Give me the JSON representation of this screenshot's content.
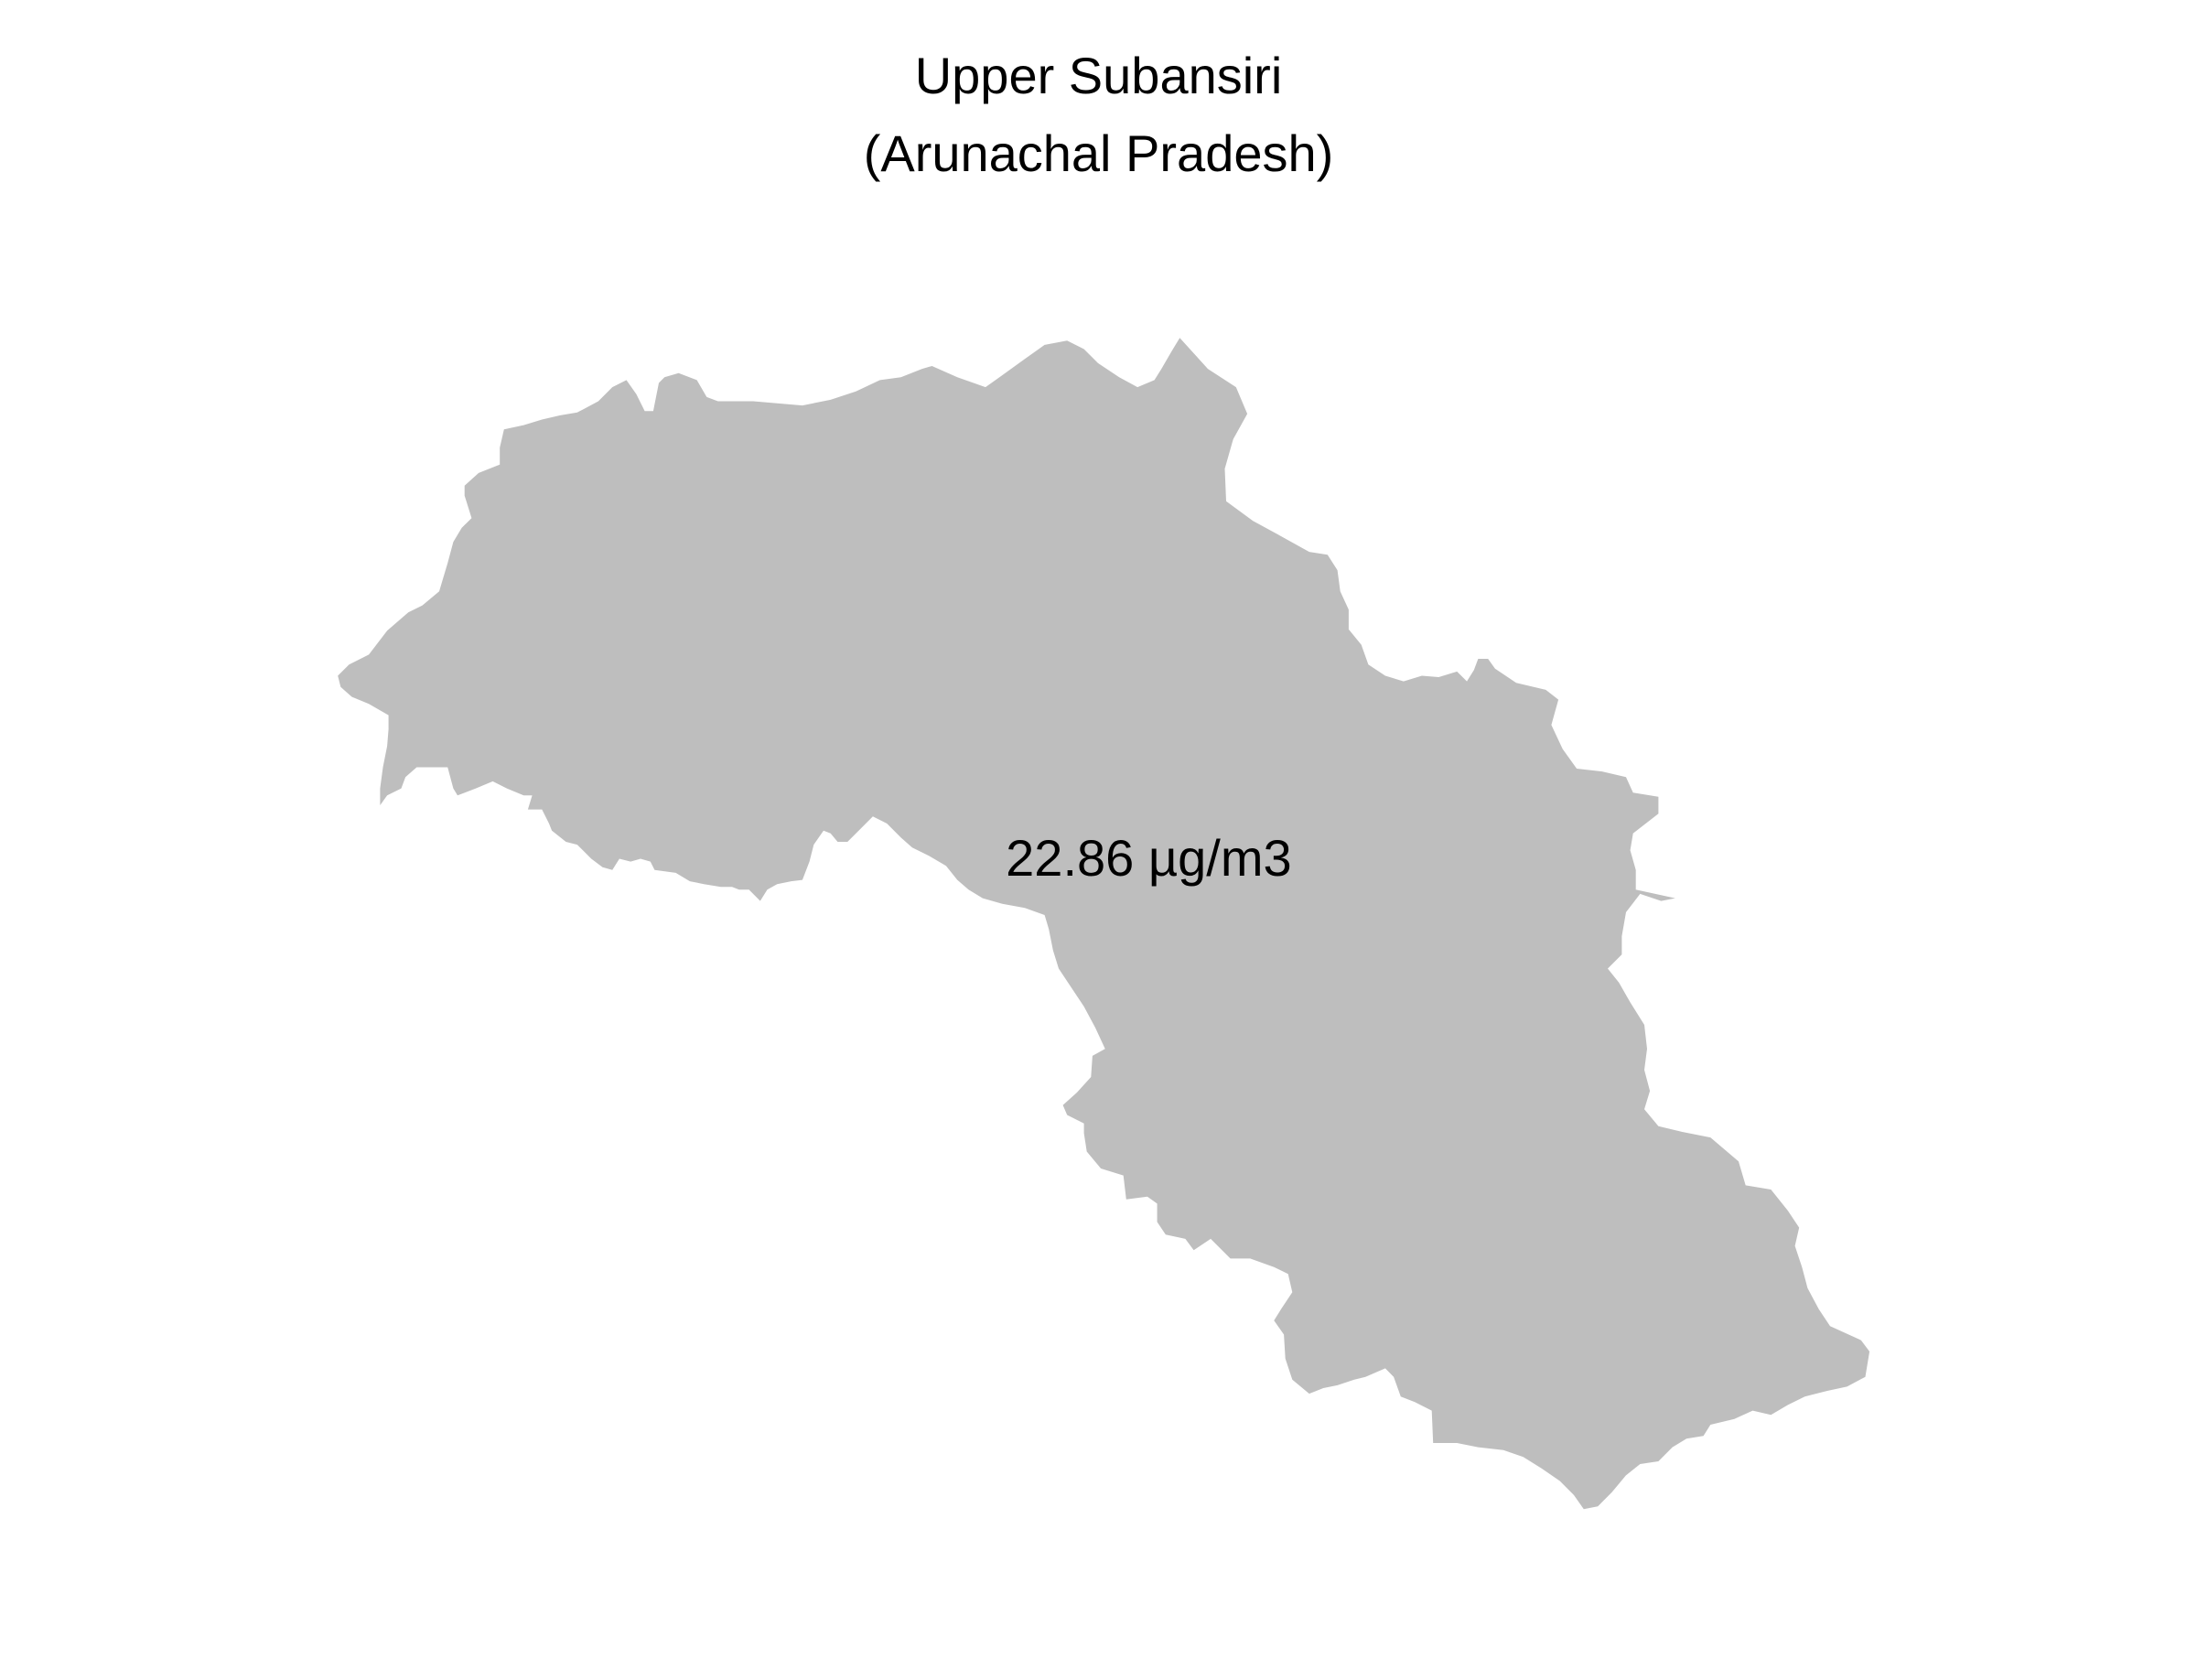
{
  "title": {
    "line1": "Upper Subansiri",
    "line2": "(Arunachal Pradesh)"
  },
  "region": {
    "name": "Upper Subansiri",
    "fill_color": "#bebebe"
  },
  "value_label": "22.86 µg/m3"
}
